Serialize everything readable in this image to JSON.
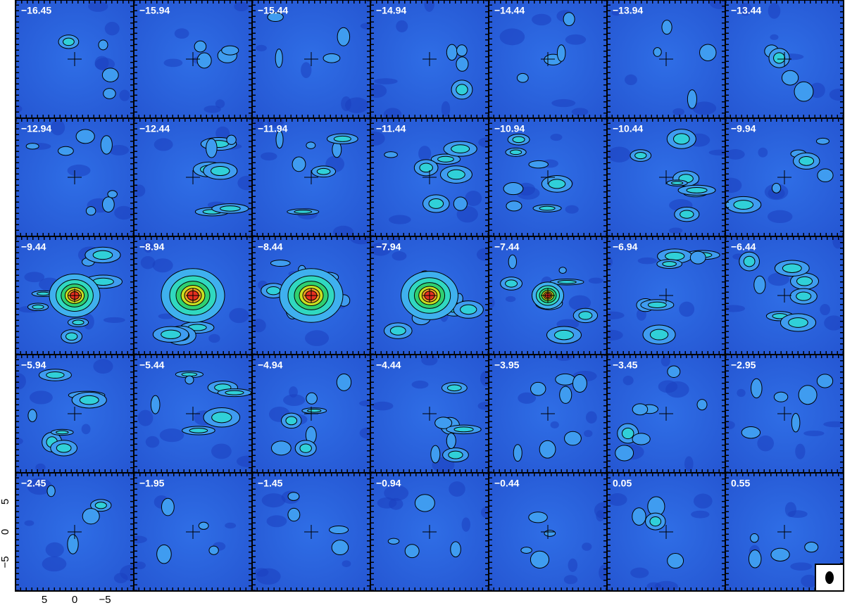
{
  "panels": [
    "−16.45",
    "−15.94",
    "−15.44",
    "−14.94",
    "−14.44",
    "−13.94",
    "−13.44",
    "−12.94",
    "−12.44",
    "−11.94",
    "−11.44",
    "−10.94",
    "−10.44",
    "−9.94",
    "−9.44",
    "−8.94",
    "−8.44",
    "−7.94",
    "−7.44",
    "−6.94",
    "−6.44",
    "−5.94",
    "−5.44",
    "−4.94",
    "−4.44",
    "−3.95",
    "−3.45",
    "−2.95",
    "−2.45",
    "−1.95",
    "−1.45",
    "−0.94",
    "−0.44",
    "0.05",
    "0.55"
  ],
  "axes": {
    "xticks": [
      5,
      0,
      {
        "value": -5,
        "label": "−5"
      }
    ],
    "yticks": [
      5,
      0,
      {
        "value": -5,
        "label": "−5"
      }
    ]
  }
}
